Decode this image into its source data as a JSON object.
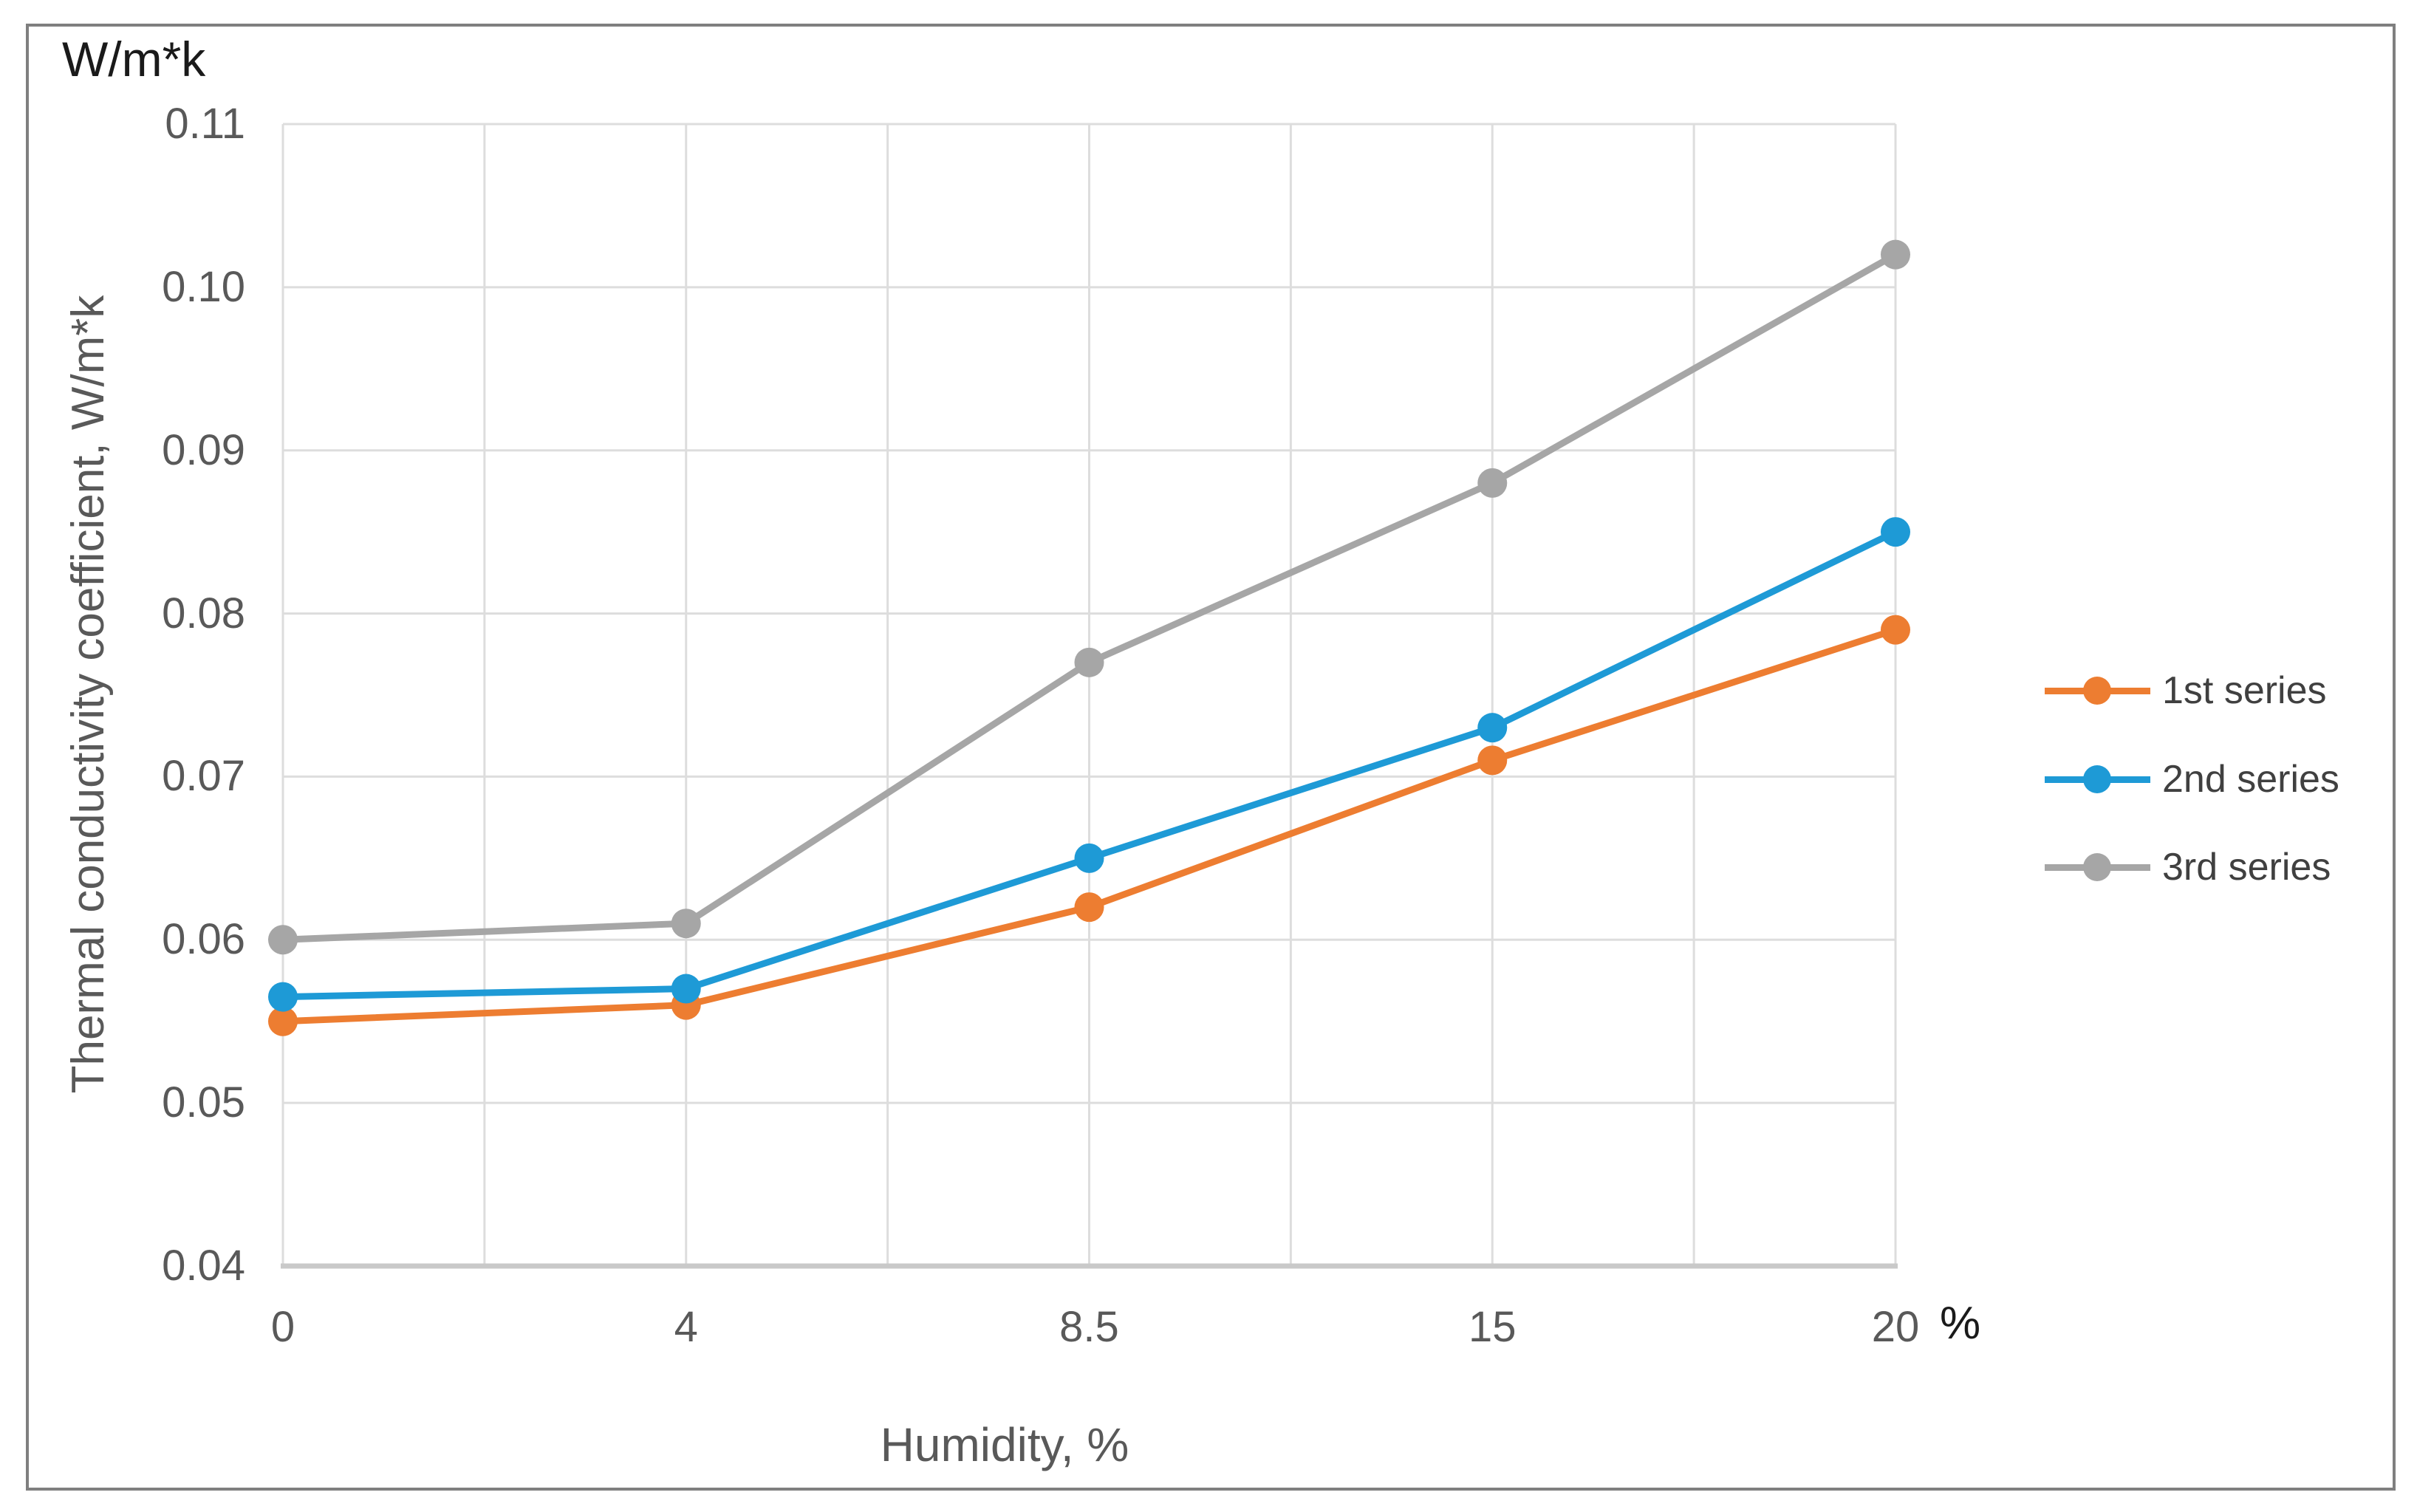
{
  "labels": {
    "y_unit": "W/m*k",
    "x_unit": "%",
    "x_title": "Humidity, %",
    "y_title": "Thermal conductivity coefficient, W/m*k"
  },
  "chart_data": {
    "type": "line",
    "categories": [
      "0",
      "4",
      "8.5",
      "15",
      "20"
    ],
    "x_values": [
      0,
      4,
      8.5,
      15,
      20
    ],
    "series": [
      {
        "name": "1st series",
        "color": "#ED7D31",
        "values": [
          0.055,
          0.056,
          0.062,
          0.071,
          0.079
        ]
      },
      {
        "name": "2nd series",
        "color": "#1E9AD6",
        "values": [
          0.0565,
          0.057,
          0.065,
          0.073,
          0.085
        ]
      },
      {
        "name": "3rd series",
        "color": "#A6A6A6",
        "values": [
          0.06,
          0.061,
          0.077,
          0.088,
          0.102
        ]
      }
    ],
    "xlabel": "Humidity, %",
    "ylabel": "Thermal conductivity coefficient, W/m*k",
    "ylim": [
      0.04,
      0.11
    ],
    "ytick_step": 0.01,
    "ytick_labels": [
      "0.11",
      "0.10",
      "0.09",
      "0.08",
      "0.07",
      "0.06",
      "0.05",
      "0.04"
    ],
    "x_axis_type": "categorical-evenly-spaced",
    "grid": true,
    "vertical_gridlines_per_interval": 2,
    "legend_position": "center-right",
    "legend": [
      "1st series",
      "2nd series",
      "3rd series"
    ],
    "colors": {
      "grid": "#DDDDDD",
      "axis_line": "#C9C9C9",
      "tick_text": "#595959",
      "axis_title_text": "#595959",
      "unit_text": "#1A1A1A",
      "legend_text": "#404040",
      "frame": "#7F7F7F"
    }
  }
}
